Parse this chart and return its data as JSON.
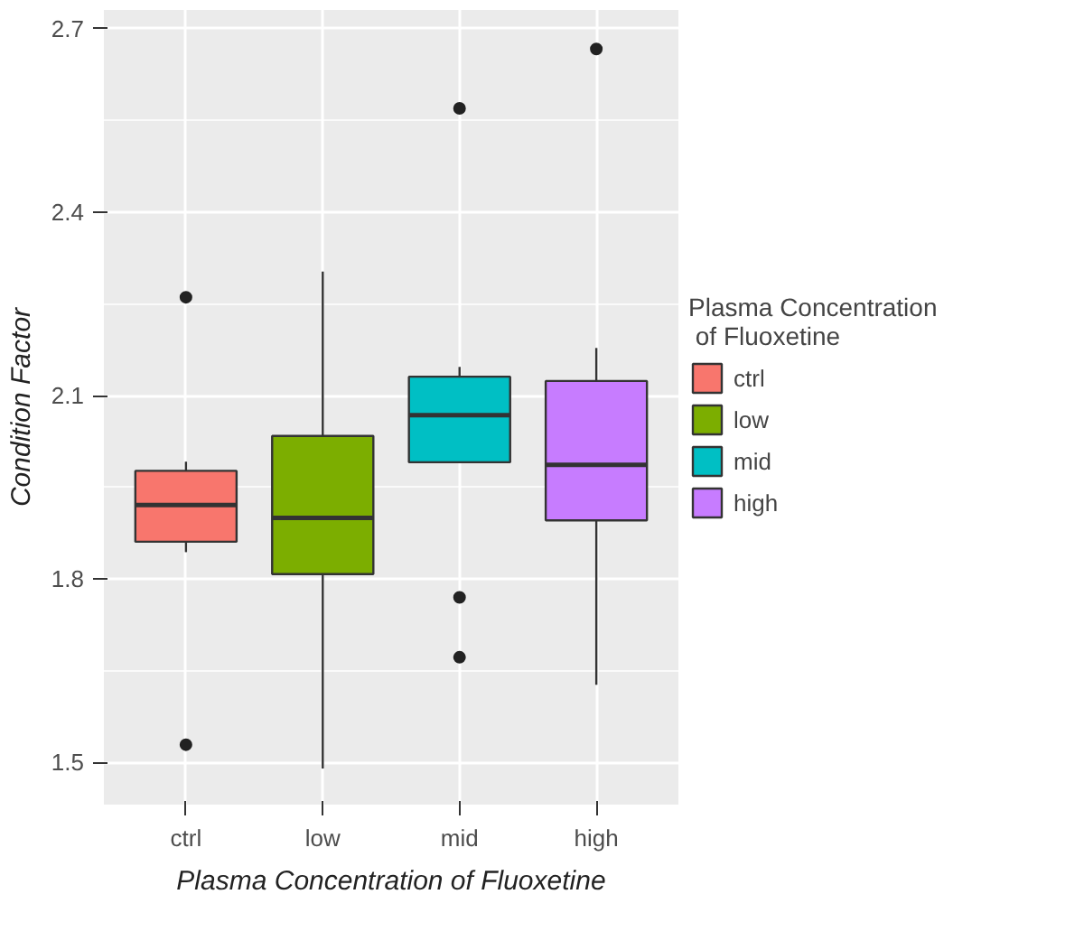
{
  "chart_data": {
    "type": "box",
    "xlabel": "Plasma Concentration of Fluoxetine",
    "ylabel": "Condition Factor",
    "legend_title": "Plasma Concentration of Fluoxetine",
    "categories": [
      "ctrl",
      "low",
      "mid",
      "high"
    ],
    "series": [
      {
        "name": "ctrl",
        "color": "#f8766d",
        "boxes": [
          {
            "low": 1.844,
            "q1": 1.861,
            "median": 1.921,
            "q3": 1.977,
            "high": 1.992,
            "outliers": [
              2.261,
              1.529
            ]
          },
          null,
          null,
          null
        ]
      },
      {
        "name": "low",
        "color": "#7cae00",
        "boxes": [
          null,
          {
            "low": 1.49,
            "q1": 1.808,
            "median": 1.9,
            "q3": 2.034,
            "high": 2.303
          },
          null,
          null
        ]
      },
      {
        "name": "mid",
        "color": "#00bfc4",
        "boxes": [
          null,
          null,
          {
            "low": 1.991,
            "q1": 1.991,
            "median": 2.068,
            "q3": 2.131,
            "high": 2.147,
            "outliers": [
              2.57,
              1.77,
              1.672
            ]
          },
          null
        ]
      },
      {
        "name": "high",
        "color": "#c77cff",
        "boxes": [
          null,
          null,
          null,
          {
            "low": 1.627,
            "q1": 1.896,
            "median": 1.987,
            "q3": 2.124,
            "high": 2.178,
            "outliers": [
              2.667
            ]
          }
        ]
      }
    ],
    "ylim": [
      1.431,
      2.731
    ],
    "yticks": [
      1.5,
      1.8,
      2.1,
      2.4,
      2.7
    ],
    "grid": true,
    "legend": "right"
  }
}
